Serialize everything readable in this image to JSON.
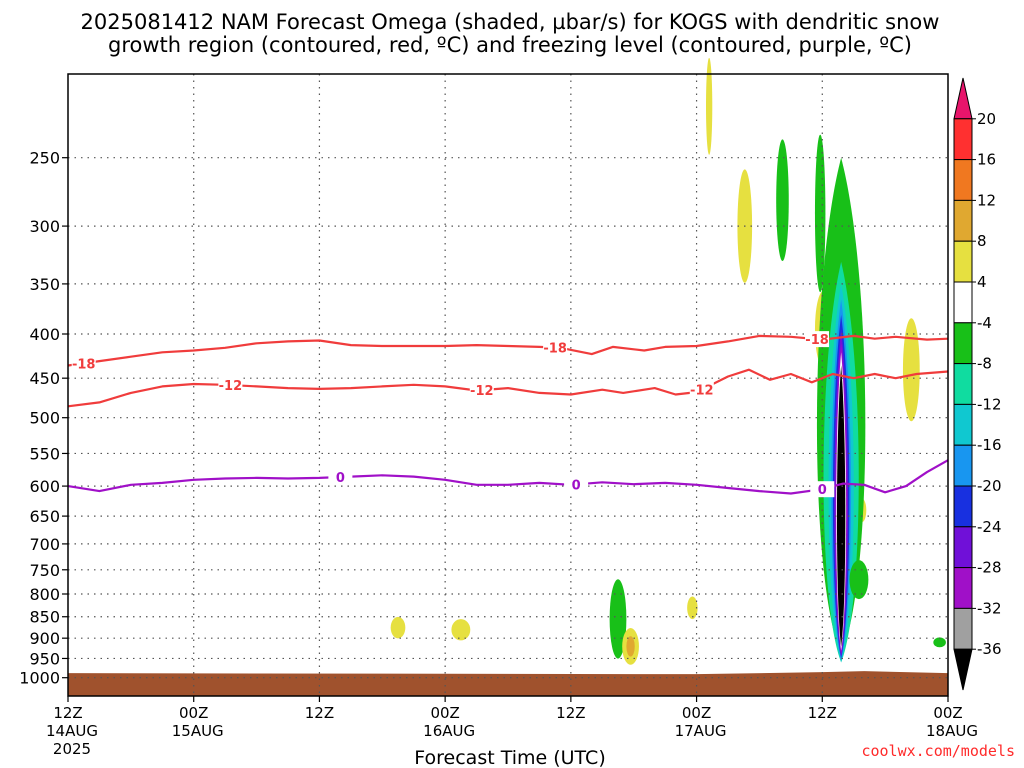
{
  "chart_data": {
    "type": "heatmap",
    "title": "2025081412 NAM Forecast Omega (shaded, µbar/s) for KOGS with dendritic snow growth region (contoured, red, ºC) and freezing level (contoured, purple, ºC)",
    "xlabel": "Forecast Time (UTC)",
    "ylabel": "",
    "x_range_hours": [
      0,
      84
    ],
    "y_scale": "log-pressure",
    "y_range_hpa": [
      1050,
      200
    ],
    "y_ticks": [
      "250",
      "300",
      "350",
      "400",
      "450",
      "500",
      "550",
      "600",
      "650",
      "700",
      "750",
      "800",
      "850",
      "900",
      "950",
      "1000"
    ],
    "x_ticks": [
      {
        "hour": 0,
        "label": "12Z",
        "date": "14AUG",
        "year": "2025"
      },
      {
        "hour": 12,
        "label": "00Z",
        "date": "15AUG",
        "year": ""
      },
      {
        "hour": 24,
        "label": "12Z",
        "date": "",
        "year": ""
      },
      {
        "hour": 36,
        "label": "00Z",
        "date": "16AUG",
        "year": ""
      },
      {
        "hour": 48,
        "label": "12Z",
        "date": "",
        "year": ""
      },
      {
        "hour": 60,
        "label": "00Z",
        "date": "17AUG",
        "year": ""
      },
      {
        "hour": 72,
        "label": "12Z",
        "date": "",
        "year": ""
      },
      {
        "hour": 84,
        "label": "00Z",
        "date": "18AUG",
        "year": ""
      }
    ],
    "grid": true,
    "colorbar": {
      "placement": "right",
      "ticks": [
        "20",
        "16",
        "12",
        "8",
        "4",
        "-4",
        "-8",
        "-12",
        "-16",
        "-20",
        "-24",
        "-28",
        "-32",
        "-36"
      ],
      "colors": [
        "#e8156b",
        "#ff3030",
        "#f07820",
        "#e0a830",
        "#e6e040",
        "#ffffff",
        "#18c018",
        "#10dca0",
        "#10c8d0",
        "#1896f0",
        "#1830e0",
        "#7010d8",
        "#a010c8",
        "#a0a0a0",
        "#000000"
      ]
    },
    "temperature_contours": [
      {
        "label": "-18",
        "color": "#f03c3c",
        "points": [
          [
            0,
            435
          ],
          [
            3,
            430
          ],
          [
            6,
            425
          ],
          [
            9,
            420
          ],
          [
            12,
            418
          ],
          [
            15,
            415
          ],
          [
            18,
            410
          ],
          [
            21,
            408
          ],
          [
            24,
            407
          ],
          [
            27,
            412
          ],
          [
            30,
            413
          ],
          [
            33,
            413
          ],
          [
            36,
            413
          ],
          [
            39,
            412
          ],
          [
            42,
            413
          ],
          [
            45,
            414
          ],
          [
            47,
            415
          ],
          [
            50,
            422
          ],
          [
            52,
            414
          ],
          [
            55,
            418
          ],
          [
            57,
            414
          ],
          [
            60,
            413
          ],
          [
            63,
            408
          ],
          [
            66,
            402
          ],
          [
            69,
            403
          ],
          [
            72,
            406
          ],
          [
            75,
            402
          ],
          [
            77,
            405
          ],
          [
            79,
            403
          ],
          [
            82,
            406
          ],
          [
            84,
            405
          ]
        ],
        "label_hours": [
          1.5,
          46.5,
          71.5
        ]
      },
      {
        "label": "-12",
        "color": "#f03c3c",
        "points": [
          [
            0,
            485
          ],
          [
            3,
            480
          ],
          [
            6,
            468
          ],
          [
            9,
            460
          ],
          [
            12,
            457
          ],
          [
            15,
            458
          ],
          [
            18,
            460
          ],
          [
            21,
            462
          ],
          [
            24,
            463
          ],
          [
            27,
            462
          ],
          [
            30,
            460
          ],
          [
            33,
            458
          ],
          [
            36,
            460
          ],
          [
            39,
            465
          ],
          [
            42,
            462
          ],
          [
            45,
            468
          ],
          [
            48,
            470
          ],
          [
            51,
            464
          ],
          [
            53,
            468
          ],
          [
            56,
            462
          ],
          [
            58,
            470
          ],
          [
            60,
            467
          ],
          [
            63,
            448
          ],
          [
            65,
            440
          ],
          [
            67,
            452
          ],
          [
            69,
            445
          ],
          [
            71,
            455
          ],
          [
            73,
            445
          ],
          [
            75,
            450
          ],
          [
            77,
            445
          ],
          [
            79,
            450
          ],
          [
            81,
            445
          ],
          [
            84,
            442
          ]
        ],
        "label_hours": [
          15.5,
          39.5,
          60.5
        ]
      },
      {
        "label": "0",
        "color": "#a010c8",
        "points": [
          [
            0,
            600
          ],
          [
            3,
            608
          ],
          [
            6,
            598
          ],
          [
            9,
            595
          ],
          [
            12,
            590
          ],
          [
            15,
            588
          ],
          [
            18,
            587
          ],
          [
            21,
            588
          ],
          [
            24,
            587
          ],
          [
            27,
            585
          ],
          [
            30,
            583
          ],
          [
            33,
            585
          ],
          [
            36,
            590
          ],
          [
            39,
            598
          ],
          [
            42,
            598
          ],
          [
            45,
            595
          ],
          [
            48,
            598
          ],
          [
            51,
            594
          ],
          [
            54,
            597
          ],
          [
            57,
            595
          ],
          [
            60,
            598
          ],
          [
            63,
            603
          ],
          [
            66,
            608
          ],
          [
            69,
            612
          ],
          [
            72,
            605
          ],
          [
            74,
            596
          ],
          [
            76,
            598
          ],
          [
            78,
            610
          ],
          [
            80,
            600
          ],
          [
            82,
            578
          ],
          [
            84,
            560
          ]
        ],
        "label_hours": [
          26,
          48.5,
          72
        ]
      }
    ],
    "omega_shading": [
      {
        "kind": "ellipse",
        "hour": 61.2,
        "p": 218,
        "hw": 0.3,
        "hh": 28,
        "color": "#e6e040"
      },
      {
        "kind": "ellipse",
        "hour": 64.6,
        "p": 300,
        "hw": 0.7,
        "hh": 45,
        "color": "#e6e040"
      },
      {
        "kind": "ellipse",
        "hour": 68.2,
        "p": 280,
        "hw": 0.6,
        "hh": 45,
        "color": "#18c018"
      },
      {
        "kind": "ellipse",
        "hour": 71.8,
        "p": 290,
        "hw": 0.5,
        "hh": 60,
        "color": "#18c018"
      },
      {
        "kind": "ellipse",
        "hour": 72.1,
        "p": 395,
        "hw": 0.8,
        "hh": 40,
        "color": "#e6e040"
      },
      {
        "kind": "ellipse",
        "hour": 72.4,
        "p": 380,
        "hw": 0.4,
        "hh": 25,
        "color": "#e0a830"
      },
      {
        "kind": "ellipse",
        "hour": 80.5,
        "p": 440,
        "hw": 0.8,
        "hh": 60,
        "color": "#e6e040"
      },
      {
        "kind": "ellipse",
        "hour": 31.5,
        "p": 875,
        "hw": 0.7,
        "hh": 25,
        "color": "#e6e040"
      },
      {
        "kind": "ellipse",
        "hour": 37.5,
        "p": 880,
        "hw": 0.9,
        "hh": 25,
        "color": "#e6e040"
      },
      {
        "kind": "ellipse",
        "hour": 52.5,
        "p": 855,
        "hw": 0.8,
        "hh": 90,
        "color": "#18c018"
      },
      {
        "kind": "ellipse",
        "hour": 53.7,
        "p": 920,
        "hw": 0.8,
        "hh": 45,
        "color": "#e6e040"
      },
      {
        "kind": "ellipse",
        "hour": 53.7,
        "p": 920,
        "hw": 0.4,
        "hh": 25,
        "color": "#e0a830"
      },
      {
        "kind": "ellipse",
        "hour": 59.6,
        "p": 830,
        "hw": 0.5,
        "hh": 25,
        "color": "#e6e040"
      },
      {
        "kind": "ellipse",
        "hour": 83.2,
        "p": 910,
        "hw": 0.6,
        "hh": 12,
        "color": "#18c018"
      },
      {
        "kind": "ellipse",
        "hour": 75.8,
        "p": 640,
        "hw": 0.4,
        "hh": 20,
        "color": "#e6e040"
      },
      {
        "kind": "column",
        "hour": 73.8,
        "p_top": 250,
        "p_bot": 940,
        "hw": 2.2,
        "color": "#18c018"
      },
      {
        "kind": "column",
        "hour": 73.8,
        "p_top": 330,
        "p_bot": 960,
        "hw": 1.6,
        "color": "#10dca0"
      },
      {
        "kind": "column",
        "hour": 73.8,
        "p_top": 350,
        "p_bot": 960,
        "hw": 1.15,
        "color": "#10c8d0"
      },
      {
        "kind": "column",
        "hour": 73.8,
        "p_top": 365,
        "p_bot": 955,
        "hw": 0.9,
        "color": "#1896f0"
      },
      {
        "kind": "column",
        "hour": 73.8,
        "p_top": 380,
        "p_bot": 950,
        "hw": 0.75,
        "color": "#1830e0"
      },
      {
        "kind": "column",
        "hour": 73.8,
        "p_top": 395,
        "p_bot": 945,
        "hw": 0.62,
        "color": "#7010d8"
      },
      {
        "kind": "column",
        "hour": 73.8,
        "p_top": 410,
        "p_bot": 940,
        "hw": 0.52,
        "color": "#a010c8"
      },
      {
        "kind": "column",
        "hour": 73.8,
        "p_top": 420,
        "p_bot": 930,
        "hw": 0.45,
        "color": "#ffffff"
      },
      {
        "kind": "column",
        "hour": 73.8,
        "p_top": 435,
        "p_bot": 920,
        "hw": 0.38,
        "color": "#000000"
      },
      {
        "kind": "ellipse",
        "hour": 75.5,
        "p": 770,
        "hw": 0.9,
        "hh": 40,
        "color": "#18c018"
      }
    ],
    "terrain": {
      "color": "#a0522d",
      "p_surface": 988
    }
  },
  "credit": "coolwx.com/models"
}
